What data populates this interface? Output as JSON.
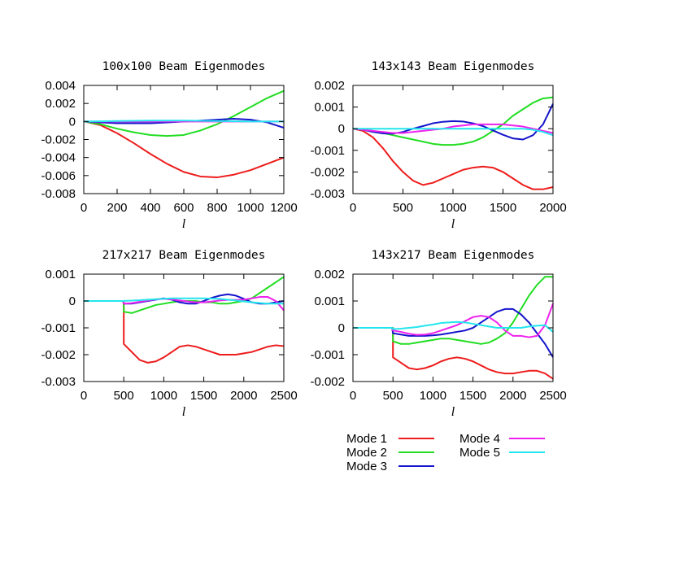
{
  "legend": {
    "entries": [
      {
        "label": "Mode 1",
        "color": "#ee1c1c"
      },
      {
        "label": "Mode 2",
        "color": "#22dd22"
      },
      {
        "label": "Mode 3",
        "color": "#1414cc"
      },
      {
        "label": "Mode 4",
        "color": "#ee22ee"
      },
      {
        "label": "Mode 5",
        "color": "#22e6ee"
      }
    ]
  },
  "chart_data": [
    {
      "type": "line",
      "title": "100x100 Beam Eigenmodes",
      "xlabel": "l",
      "ylabel": "",
      "xlim": [
        0,
        1200
      ],
      "ylim": [
        -0.008,
        0.004
      ],
      "xticks": [
        0,
        200,
        400,
        600,
        800,
        1000,
        1200
      ],
      "yticks": [
        -0.008,
        -0.006,
        -0.004,
        -0.002,
        0,
        0.002,
        0.004
      ],
      "ytick_labels": [
        "-0.008",
        "-0.006",
        "-0.004",
        "-0.002",
        "0",
        "0.002",
        "0.004"
      ],
      "series": [
        {
          "name": "Mode 1",
          "x": [
            0,
            100,
            200,
            300,
            400,
            500,
            600,
            700,
            800,
            900,
            1000,
            1100,
            1200
          ],
          "y": [
            0,
            -0.0004,
            -0.0013,
            -0.0024,
            -0.0036,
            -0.0047,
            -0.0056,
            -0.0061,
            -0.0062,
            -0.0059,
            -0.0054,
            -0.0047,
            -0.004
          ]
        },
        {
          "name": "Mode 2",
          "x": [
            0,
            100,
            200,
            300,
            400,
            500,
            600,
            700,
            800,
            900,
            1000,
            1100,
            1200
          ],
          "y": [
            0,
            -0.0003,
            -0.0008,
            -0.0012,
            -0.0015,
            -0.0016,
            -0.0015,
            -0.001,
            -0.0003,
            0.0006,
            0.0016,
            0.0026,
            0.0034
          ]
        },
        {
          "name": "Mode 3",
          "x": [
            0,
            100,
            200,
            300,
            400,
            500,
            600,
            700,
            800,
            900,
            1000,
            1100,
            1200
          ],
          "y": [
            0,
            -0.0001,
            -0.0002,
            -0.0002,
            -0.0002,
            -0.0001,
            0,
            0.0001,
            0.0002,
            0.0003,
            0.0002,
            -0.0001,
            -0.0007
          ]
        },
        {
          "name": "Mode 4",
          "x": [
            0,
            200,
            400,
            600,
            800,
            1000,
            1200
          ],
          "y": [
            0,
            0,
            0,
            0,
            0,
            0,
            0
          ]
        },
        {
          "name": "Mode 5",
          "x": [
            0,
            200,
            400,
            600,
            800,
            1000,
            1200
          ],
          "y": [
            0,
            5e-05,
            0.0001,
            0.0001,
            5e-05,
            0,
            0
          ]
        }
      ]
    },
    {
      "type": "line",
      "title": "143x143 Beam Eigenmodes",
      "xlabel": "l",
      "ylabel": "",
      "xlim": [
        0,
        2000
      ],
      "ylim": [
        -0.003,
        0.002
      ],
      "xticks": [
        0,
        500,
        1000,
        1500,
        2000
      ],
      "yticks": [
        -0.003,
        -0.002,
        -0.001,
        0,
        0.001,
        0.002
      ],
      "ytick_labels": [
        "-0.003",
        "-0.002",
        "-0.001",
        "0",
        "0.001",
        "0.002"
      ],
      "series": [
        {
          "name": "Mode 1",
          "x": [
            0,
            100,
            200,
            300,
            400,
            500,
            600,
            700,
            800,
            900,
            1000,
            1100,
            1200,
            1300,
            1400,
            1500,
            1600,
            1700,
            1800,
            1900,
            2000
          ],
          "y": [
            0,
            -0.0001,
            -0.0004,
            -0.0009,
            -0.0015,
            -0.002,
            -0.0024,
            -0.0026,
            -0.0025,
            -0.0023,
            -0.0021,
            -0.0019,
            -0.0018,
            -0.00175,
            -0.0018,
            -0.002,
            -0.0023,
            -0.0026,
            -0.0028,
            -0.0028,
            -0.0027
          ]
        },
        {
          "name": "Mode 2",
          "x": [
            0,
            100,
            200,
            300,
            400,
            500,
            600,
            700,
            800,
            900,
            1000,
            1100,
            1200,
            1300,
            1400,
            1500,
            1600,
            1700,
            1800,
            1900,
            2000
          ],
          "y": [
            0,
            -5e-05,
            -0.0001,
            -0.0002,
            -0.0003,
            -0.0004,
            -0.0005,
            -0.0006,
            -0.0007,
            -0.00075,
            -0.00075,
            -0.0007,
            -0.0006,
            -0.0004,
            -0.0001,
            0.0002,
            0.0006,
            0.0009,
            0.0012,
            0.0014,
            0.00145
          ]
        },
        {
          "name": "Mode 3",
          "x": [
            0,
            100,
            200,
            300,
            400,
            500,
            600,
            700,
            800,
            900,
            1000,
            1100,
            1200,
            1300,
            1400,
            1500,
            1600,
            1700,
            1800,
            1900,
            2000
          ],
          "y": [
            0,
            -5e-05,
            -0.00015,
            -0.00022,
            -0.00023,
            -0.00015,
            0,
            0.00012,
            0.00025,
            0.00032,
            0.00035,
            0.00033,
            0.00025,
            0.00012,
            -8e-05,
            -0.00028,
            -0.00045,
            -0.0005,
            -0.0003,
            0.0002,
            0.00115
          ]
        },
        {
          "name": "Mode 4",
          "x": [
            0,
            100,
            200,
            300,
            400,
            500,
            600,
            700,
            800,
            900,
            1000,
            1100,
            1200,
            1300,
            1400,
            1500,
            1600,
            1700,
            1800,
            1900,
            2000
          ],
          "y": [
            0,
            -5e-05,
            -0.0001,
            -0.00015,
            -0.0002,
            -0.0002,
            -0.00015,
            -0.0001,
            -5e-05,
            0,
            0.0001,
            0.00015,
            0.0002,
            0.0002,
            0.0002,
            0.0002,
            0.00015,
            0.0001,
            0,
            -0.0001,
            -0.0002
          ]
        },
        {
          "name": "Mode 5",
          "x": [
            0,
            500,
            1000,
            1500,
            1700,
            1800,
            1900,
            2000
          ],
          "y": [
            0,
            0,
            0,
            0,
            0,
            -5e-05,
            -0.00015,
            -0.0003
          ]
        }
      ]
    },
    {
      "type": "line",
      "title": "217x217 Beam Eigenmodes",
      "xlabel": "l",
      "ylabel": "",
      "xlim": [
        0,
        2500
      ],
      "ylim": [
        -0.003,
        0.001
      ],
      "xticks": [
        0,
        500,
        1000,
        1500,
        2000,
        2500
      ],
      "yticks": [
        -0.003,
        -0.002,
        -0.001,
        0,
        0.001
      ],
      "ytick_labels": [
        "-0.003",
        "-0.002",
        "-0.001",
        "0",
        "0.001"
      ],
      "series": [
        {
          "name": "Mode 1",
          "x": [
            0,
            490,
            500,
            500,
            600,
            700,
            800,
            900,
            1000,
            1100,
            1200,
            1300,
            1400,
            1500,
            1600,
            1700,
            1800,
            1900,
            2000,
            2100,
            2200,
            2300,
            2400,
            2500
          ],
          "y": [
            0,
            0,
            0,
            -0.0016,
            -0.0019,
            -0.0022,
            -0.0023,
            -0.00225,
            -0.0021,
            -0.0019,
            -0.0017,
            -0.00165,
            -0.0017,
            -0.0018,
            -0.0019,
            -0.002,
            -0.002,
            -0.002,
            -0.00195,
            -0.0019,
            -0.0018,
            -0.0017,
            -0.00165,
            -0.00168
          ]
        },
        {
          "name": "Mode 2",
          "x": [
            0,
            490,
            500,
            500,
            600,
            700,
            800,
            900,
            1000,
            1100,
            1200,
            1300,
            1400,
            1500,
            1600,
            1700,
            1800,
            1900,
            2000,
            2100,
            2200,
            2300,
            2400,
            2500
          ],
          "y": [
            0,
            0,
            0,
            -0.0004,
            -0.00045,
            -0.00035,
            -0.00025,
            -0.00015,
            -0.0001,
            -5e-05,
            0,
            0,
            0,
            -5e-05,
            -5e-05,
            -0.0001,
            -0.0001,
            -5e-05,
            0,
            0.0001,
            0.0003,
            0.0005,
            0.0007,
            0.0009
          ]
        },
        {
          "name": "Mode 3",
          "x": [
            0,
            490,
            500,
            600,
            700,
            800,
            900,
            1000,
            1100,
            1200,
            1300,
            1400,
            1500,
            1600,
            1700,
            1800,
            1900,
            2000,
            2100,
            2200,
            2300,
            2400,
            2500
          ],
          "y": [
            0,
            0,
            -0.0001,
            -0.0001,
            -5e-05,
            0,
            5e-05,
            0.0001,
            5e-05,
            -5e-05,
            -0.0001,
            -0.0001,
            0,
            0.00012,
            0.0002,
            0.00025,
            0.0002,
            8e-05,
            -5e-05,
            -0.0001,
            -0.0001,
            -5e-05,
            0
          ]
        },
        {
          "name": "Mode 4",
          "x": [
            0,
            490,
            500,
            600,
            700,
            800,
            900,
            1000,
            1100,
            1200,
            1300,
            1400,
            1500,
            1600,
            1700,
            1800,
            1900,
            2000,
            2100,
            2200,
            2300,
            2400,
            2500
          ],
          "y": [
            0,
            0,
            -0.0001,
            -8e-05,
            -3e-05,
            2e-05,
            6e-05,
            8e-05,
            6e-05,
            2e-05,
            -2e-05,
            -5e-05,
            -5e-05,
            -2e-05,
            2e-05,
            4e-05,
            4e-05,
            5e-05,
            0.0001,
            0.00015,
            0.00015,
            0,
            -0.00035
          ]
        },
        {
          "name": "Mode 5",
          "x": [
            0,
            490,
            500,
            700,
            900,
            1100,
            1300,
            1500,
            1700,
            1900,
            2100,
            2300,
            2500
          ],
          "y": [
            0,
            0,
            0,
            3e-05,
            7e-05,
            0.0001,
            0.0001,
            0.0001,
            8e-05,
            2e-05,
            -5e-05,
            -0.0001,
            -0.0001
          ]
        }
      ]
    },
    {
      "type": "line",
      "title": "143x217 Beam Eigenmodes",
      "xlabel": "l",
      "ylabel": "",
      "xlim": [
        0,
        2500
      ],
      "ylim": [
        -0.002,
        0.002
      ],
      "xticks": [
        0,
        500,
        1000,
        1500,
        2000,
        2500
      ],
      "yticks": [
        -0.002,
        -0.001,
        0,
        0.001,
        0.002
      ],
      "ytick_labels": [
        "-0.002",
        "-0.001",
        "0",
        "0.001",
        "0.002"
      ],
      "series": [
        {
          "name": "Mode 1",
          "x": [
            0,
            490,
            500,
            500,
            600,
            700,
            800,
            900,
            1000,
            1100,
            1200,
            1300,
            1400,
            1500,
            1600,
            1700,
            1800,
            1900,
            2000,
            2100,
            2200,
            2300,
            2400,
            2500
          ],
          "y": [
            0,
            0,
            0,
            -0.0011,
            -0.0013,
            -0.0015,
            -0.00155,
            -0.0015,
            -0.0014,
            -0.00125,
            -0.00115,
            -0.0011,
            -0.00115,
            -0.00125,
            -0.0014,
            -0.00155,
            -0.00165,
            -0.0017,
            -0.0017,
            -0.00165,
            -0.0016,
            -0.0016,
            -0.0017,
            -0.0019
          ]
        },
        {
          "name": "Mode 2",
          "x": [
            0,
            490,
            500,
            500,
            600,
            700,
            800,
            900,
            1000,
            1100,
            1200,
            1300,
            1400,
            1500,
            1600,
            1700,
            1800,
            1900,
            2000,
            2100,
            2200,
            2300,
            2400,
            2500
          ],
          "y": [
            0,
            0,
            0,
            -0.0005,
            -0.0006,
            -0.0006,
            -0.00055,
            -0.0005,
            -0.00045,
            -0.0004,
            -0.0004,
            -0.00045,
            -0.0005,
            -0.00055,
            -0.0006,
            -0.00055,
            -0.0004,
            -0.0002,
            0.0002,
            0.0007,
            0.0012,
            0.0016,
            0.0019,
            0.0019
          ]
        },
        {
          "name": "Mode 3",
          "x": [
            0,
            490,
            500,
            600,
            700,
            800,
            900,
            1000,
            1100,
            1200,
            1300,
            1400,
            1500,
            1600,
            1700,
            1800,
            1900,
            2000,
            2100,
            2200,
            2300,
            2400,
            2500
          ],
          "y": [
            0,
            0,
            -0.0002,
            -0.00025,
            -0.0003,
            -0.0003,
            -0.0003,
            -0.00028,
            -0.00025,
            -0.0002,
            -0.00015,
            -0.0001,
            0,
            0.0002,
            0.0004,
            0.0006,
            0.0007,
            0.0007,
            0.0005,
            0.0002,
            -0.0002,
            -0.0006,
            -0.0011
          ]
        },
        {
          "name": "Mode 4",
          "x": [
            0,
            490,
            500,
            600,
            700,
            800,
            900,
            1000,
            1100,
            1200,
            1300,
            1400,
            1500,
            1600,
            1700,
            1800,
            1900,
            2000,
            2100,
            2200,
            2300,
            2400,
            2500
          ],
          "y": [
            0,
            0,
            -0.0001,
            -0.00015,
            -0.00022,
            -0.00026,
            -0.00025,
            -0.0002,
            -0.0001,
            0,
            0.0001,
            0.00025,
            0.0004,
            0.00045,
            0.0004,
            0.0002,
            -0.0001,
            -0.0003,
            -0.0003,
            -0.00035,
            -0.0003,
            0.0001,
            0.0009
          ]
        },
        {
          "name": "Mode 5",
          "x": [
            0,
            490,
            500,
            600,
            700,
            800,
            900,
            1000,
            1100,
            1200,
            1300,
            1400,
            1500,
            1600,
            1700,
            1800,
            1900,
            2000,
            2100,
            2200,
            2300,
            2400,
            2500
          ],
          "y": [
            0,
            0,
            -5e-05,
            -3e-05,
            0,
            3e-05,
            8e-05,
            0.00012,
            0.00018,
            0.0002,
            0.00022,
            0.0002,
            0.00015,
            0.0001,
            5e-05,
            0,
            0,
            0,
            0,
            5e-05,
            8e-05,
            0.0001,
            -0.00015
          ]
        }
      ]
    }
  ]
}
